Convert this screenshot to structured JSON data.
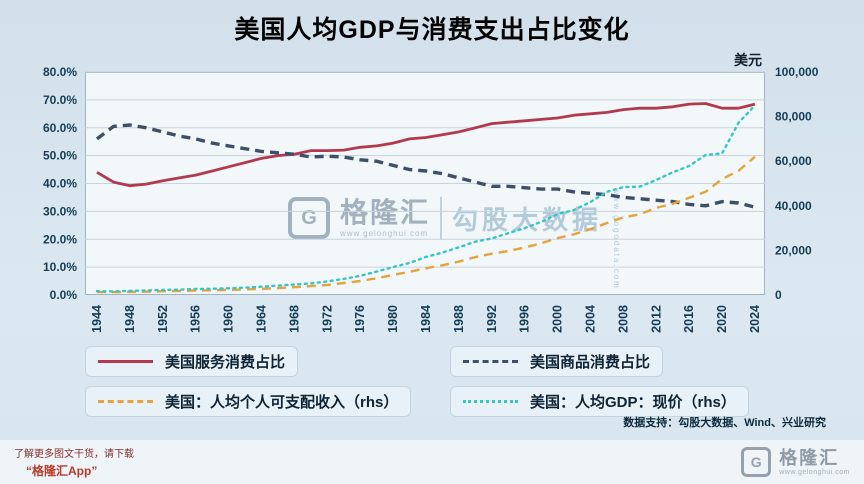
{
  "title": "美国人均GDP与消费支出占比变化",
  "watermark": {
    "logo_letter": "G",
    "brand": "格隆汇",
    "brand_url": "www.gelonghui.com",
    "partner": "勾股大数据",
    "partner_url": "www.gogodata.com"
  },
  "footer": {
    "data_support": "数据支持：勾股大数据、Wind、兴业研究",
    "promo_line1": "了解更多图文干货，请下载",
    "promo_line2": "“格隆汇App”",
    "logo_letter": "G",
    "logo_text": "格隆汇",
    "logo_url": "www.gelonghui.com"
  },
  "chart_data": {
    "type": "line",
    "title": "美国人均GDP与消费支出占比变化",
    "grid": true,
    "legend_position": "bottom",
    "x": [
      1944,
      1946,
      1948,
      1950,
      1952,
      1954,
      1956,
      1958,
      1960,
      1962,
      1964,
      1966,
      1968,
      1970,
      1972,
      1974,
      1976,
      1978,
      1980,
      1982,
      1984,
      1986,
      1988,
      1990,
      1992,
      1994,
      1996,
      1998,
      2000,
      2002,
      2004,
      2006,
      2008,
      2010,
      2012,
      2014,
      2016,
      2018,
      2020,
      2022,
      2024
    ],
    "x_ticks": [
      1944,
      1948,
      1952,
      1956,
      1960,
      1964,
      1968,
      1972,
      1976,
      1980,
      1984,
      1988,
      1992,
      1996,
      2000,
      2004,
      2008,
      2012,
      2016,
      2020,
      2024
    ],
    "left_axis": {
      "min": 0,
      "max": 80,
      "unit": "%",
      "tick_labels": [
        "0.0%",
        "10.0%",
        "20.0%",
        "30.0%",
        "40.0%",
        "50.0%",
        "60.0%",
        "70.0%",
        "80.0%"
      ]
    },
    "right_axis": {
      "min": 0,
      "max": 100000,
      "unit": "美元",
      "tick_labels": [
        "0",
        "20,000",
        "40,000",
        "60,000",
        "80,000",
        "100,000"
      ]
    },
    "series": [
      {
        "name": "美国服务消费占比",
        "axis": "left",
        "dash": "solid",
        "color": "#b5394e",
        "width": 2.8,
        "values": [
          44.0,
          40.5,
          39.2,
          39.8,
          41.0,
          42.0,
          43.0,
          44.5,
          46.0,
          47.5,
          49.0,
          50.0,
          50.5,
          51.8,
          51.8,
          52.0,
          53.0,
          53.5,
          54.5,
          56.0,
          56.5,
          57.5,
          58.5,
          60.0,
          61.5,
          62.0,
          62.5,
          63.0,
          63.5,
          64.5,
          65.0,
          65.5,
          66.5,
          67.0,
          67.0,
          67.5,
          68.5,
          68.7,
          67.0,
          67.0,
          68.5
        ]
      },
      {
        "name": "美国商品消费占比",
        "axis": "left",
        "dash": "dashed",
        "color": "#3d5068",
        "width": 3.4,
        "values": [
          56.0,
          60.5,
          61.0,
          60.0,
          58.5,
          57.0,
          56.0,
          54.5,
          53.5,
          52.5,
          51.5,
          51.0,
          50.5,
          49.5,
          49.8,
          49.5,
          48.5,
          48.0,
          46.5,
          45.0,
          44.5,
          43.5,
          42.0,
          40.5,
          39.0,
          39.0,
          38.5,
          38.0,
          38.0,
          37.0,
          36.5,
          36.0,
          35.0,
          34.5,
          34.0,
          33.5,
          32.5,
          32.0,
          33.5,
          33.0,
          31.5
        ]
      },
      {
        "name": "美国：人均个人可支配收入（rhs）",
        "axis": "right",
        "dash": "dashed",
        "color": "#e8a23b",
        "width": 2.4,
        "values": [
          1300,
          1300,
          1400,
          1500,
          1700,
          1800,
          2000,
          2100,
          2300,
          2500,
          2800,
          3100,
          3500,
          4000,
          4500,
          5400,
          6300,
          7500,
          9000,
          10400,
          12000,
          13300,
          15000,
          17000,
          18500,
          19700,
          21300,
          23200,
          25500,
          27200,
          29500,
          32300,
          34800,
          36200,
          39100,
          40900,
          43600,
          46300,
          52000,
          55700,
          62000
        ]
      },
      {
        "name": "美国：人均GDP：现价（rhs）",
        "axis": "right",
        "dash": "dotted",
        "color": "#35c6c8",
        "width": 2.4,
        "values": [
          1700,
          1600,
          1900,
          2000,
          2300,
          2400,
          2700,
          2800,
          3000,
          3300,
          3700,
          4200,
          4700,
          5200,
          6100,
          7200,
          8600,
          10500,
          12500,
          14400,
          17100,
          19000,
          21400,
          23900,
          25400,
          27700,
          30000,
          32800,
          36300,
          38100,
          41700,
          46300,
          48400,
          48600,
          51600,
          55000,
          57900,
          62800,
          63500,
          77200,
          85000
        ]
      }
    ]
  }
}
